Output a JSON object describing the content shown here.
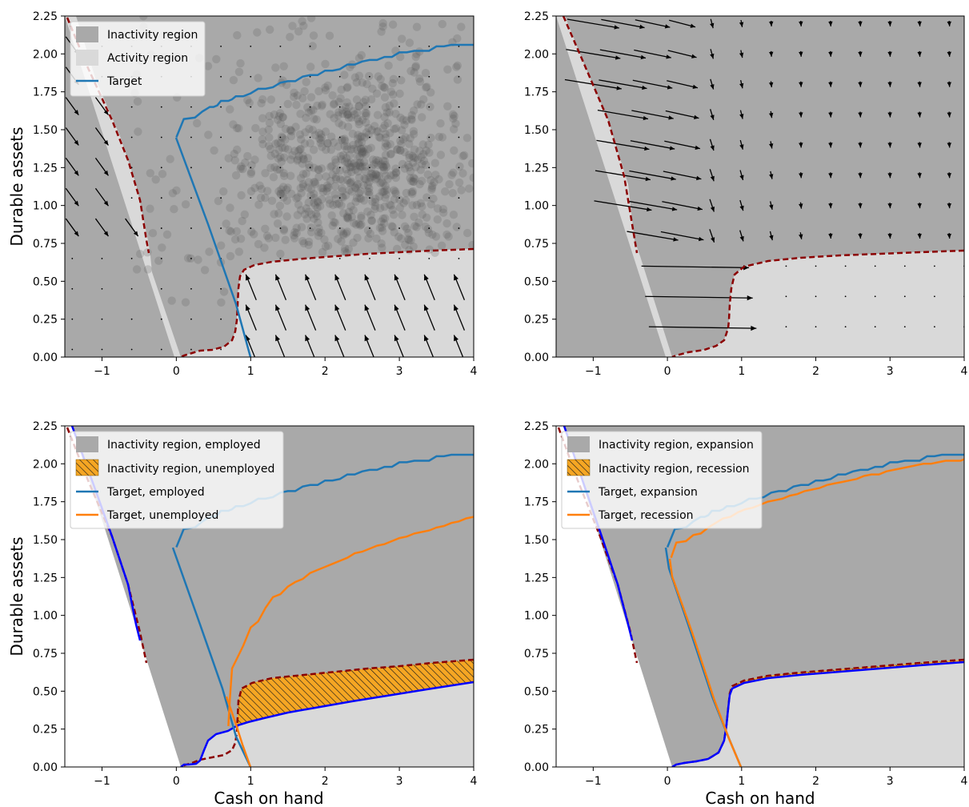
{
  "colors": {
    "inactivity": "#a9a9a9",
    "activity": "#d9d9d9",
    "blue": "#1f77b4",
    "orange": "#ff7f0e",
    "boundary": "#8b0000",
    "bright_blue": "#0000ff",
    "hatch_fill": "#f5a623"
  },
  "axes": {
    "xlim": [
      -1.5,
      4
    ],
    "ylim": [
      0,
      2.25
    ],
    "xticks": [
      -1,
      0,
      1,
      2,
      3,
      4
    ],
    "xtick_labels": [
      "−1",
      "0",
      "1",
      "2",
      "3",
      "4"
    ],
    "yticks": [
      0,
      0.25,
      0.5,
      0.75,
      1.0,
      1.25,
      1.5,
      1.75,
      2.0,
      2.25
    ],
    "ytick_labels": [
      "0.00",
      "0.25",
      "0.50",
      "0.75",
      "1.00",
      "1.25",
      "1.50",
      "1.75",
      "2.00",
      "2.25"
    ],
    "xlabel": "Cash on hand",
    "ylabel": "Durable assets"
  },
  "chart_data": [
    {
      "type": "area",
      "panel": "top-left",
      "ylabel": "Durable assets",
      "xlabel": "",
      "legend": [
        "Inactivity region",
        "Activity region",
        "Target"
      ],
      "legend_position": "top-left",
      "extras": "scatter cloud of simulated households and quiver field of drift",
      "series": [
        {
          "name": "Target",
          "x": [
            0.0,
            0.1,
            0.25,
            0.35,
            0.45,
            0.5,
            0.55,
            0.6,
            0.7,
            0.75,
            0.8,
            0.9,
            1.0,
            1.1,
            1.2,
            1.3,
            1.4,
            1.5,
            1.6,
            1.7,
            1.8,
            1.9,
            2.0,
            2.1,
            2.2,
            2.3,
            2.4,
            2.5,
            2.6,
            2.7,
            2.8,
            2.9,
            3.0,
            3.1,
            3.2,
            3.3,
            3.4,
            3.5,
            3.6,
            3.7,
            3.8,
            3.9,
            4.0
          ],
          "y": [
            1.45,
            1.57,
            1.58,
            1.62,
            1.65,
            1.65,
            1.66,
            1.69,
            1.69,
            1.7,
            1.72,
            1.72,
            1.74,
            1.77,
            1.77,
            1.78,
            1.81,
            1.82,
            1.82,
            1.85,
            1.86,
            1.86,
            1.89,
            1.89,
            1.9,
            1.93,
            1.93,
            1.95,
            1.96,
            1.96,
            1.98,
            1.98,
            2.01,
            2.01,
            2.02,
            2.02,
            2.02,
            2.05,
            2.05,
            2.06,
            2.06,
            2.06,
            2.06
          ]
        }
      ]
    },
    {
      "type": "area",
      "panel": "top-right",
      "ylabel": "",
      "xlabel": "",
      "legend": [],
      "extras": "quiver field of drift",
      "series": []
    },
    {
      "type": "area",
      "panel": "bottom-left",
      "ylabel": "Durable assets",
      "xlabel": "Cash on hand",
      "legend": [
        "Inactivity region, employed",
        "Inactivity region, unemployed",
        "Target, employed",
        "Target, unemployed"
      ],
      "legend_position": "top-left",
      "series": [
        {
          "name": "Target, employed",
          "x": [
            0.0,
            0.1,
            0.25,
            0.35,
            0.45,
            0.5,
            0.55,
            0.6,
            0.7,
            0.75,
            0.8,
            0.9,
            1.0,
            1.1,
            1.2,
            1.3,
            1.4,
            1.5,
            1.6,
            1.7,
            1.8,
            1.9,
            2.0,
            2.1,
            2.2,
            2.3,
            2.4,
            2.5,
            2.6,
            2.7,
            2.8,
            2.9,
            3.0,
            3.1,
            3.2,
            3.3,
            3.4,
            3.5,
            3.6,
            3.7,
            3.8,
            3.9,
            4.0
          ],
          "y": [
            1.45,
            1.57,
            1.58,
            1.62,
            1.65,
            1.65,
            1.66,
            1.69,
            1.69,
            1.7,
            1.72,
            1.72,
            1.74,
            1.77,
            1.77,
            1.78,
            1.81,
            1.82,
            1.82,
            1.85,
            1.86,
            1.86,
            1.89,
            1.89,
            1.9,
            1.93,
            1.93,
            1.95,
            1.96,
            1.96,
            1.98,
            1.98,
            2.01,
            2.01,
            2.02,
            2.02,
            2.02,
            2.05,
            2.05,
            2.06,
            2.06,
            2.06,
            2.06
          ]
        },
        {
          "name": "Target, unemployed",
          "x": [
            0.7,
            0.72,
            0.75,
            0.8,
            0.9,
            1.0,
            1.1,
            1.2,
            1.3,
            1.4,
            1.5,
            1.6,
            1.7,
            1.8,
            1.9,
            2.0,
            2.1,
            2.2,
            2.3,
            2.4,
            2.5,
            2.6,
            2.7,
            2.8,
            2.9,
            3.0,
            3.1,
            3.2,
            3.3,
            3.4,
            3.5,
            3.6,
            3.7,
            3.8,
            3.9,
            4.0
          ],
          "y": [
            0.27,
            0.45,
            0.65,
            0.7,
            0.8,
            0.92,
            0.96,
            1.05,
            1.12,
            1.14,
            1.19,
            1.22,
            1.24,
            1.28,
            1.3,
            1.32,
            1.34,
            1.36,
            1.38,
            1.41,
            1.42,
            1.44,
            1.46,
            1.47,
            1.49,
            1.51,
            1.52,
            1.54,
            1.55,
            1.56,
            1.58,
            1.59,
            1.61,
            1.62,
            1.64,
            1.65
          ]
        }
      ]
    },
    {
      "type": "area",
      "panel": "bottom-right",
      "ylabel": "",
      "xlabel": "Cash on hand",
      "legend": [
        "Inactivity region, expansion",
        "Inactivity region, recession",
        "Target, expansion",
        "Target, recession"
      ],
      "legend_position": "top-left",
      "series": [
        {
          "name": "Target, expansion",
          "x": [
            0.0,
            0.1,
            0.25,
            0.35,
            0.45,
            0.5,
            0.55,
            0.6,
            0.7,
            0.75,
            0.8,
            0.9,
            1.0,
            1.1,
            1.2,
            1.3,
            1.4,
            1.5,
            1.6,
            1.7,
            1.8,
            1.9,
            2.0,
            2.1,
            2.2,
            2.3,
            2.4,
            2.5,
            2.6,
            2.7,
            2.8,
            2.9,
            3.0,
            3.1,
            3.2,
            3.3,
            3.4,
            3.5,
            3.6,
            3.7,
            3.8,
            3.9,
            4.0
          ],
          "y": [
            1.45,
            1.57,
            1.58,
            1.62,
            1.65,
            1.65,
            1.66,
            1.69,
            1.69,
            1.7,
            1.72,
            1.72,
            1.74,
            1.77,
            1.77,
            1.78,
            1.81,
            1.82,
            1.82,
            1.85,
            1.86,
            1.86,
            1.89,
            1.89,
            1.9,
            1.93,
            1.93,
            1.95,
            1.96,
            1.96,
            1.98,
            1.98,
            2.01,
            2.01,
            2.02,
            2.02,
            2.02,
            2.05,
            2.05,
            2.06,
            2.06,
            2.06,
            2.06
          ]
        },
        {
          "name": "Target, recession",
          "x": [
            0.05,
            0.12,
            0.25,
            0.35,
            0.45,
            0.55,
            0.65,
            0.75,
            0.85,
            0.95,
            1.05,
            1.15,
            1.25,
            1.35,
            1.45,
            1.55,
            1.65,
            1.75,
            1.85,
            1.95,
            2.05,
            2.15,
            2.25,
            2.35,
            2.45,
            2.55,
            2.65,
            2.75,
            2.85,
            2.95,
            3.05,
            3.15,
            3.25,
            3.35,
            3.45,
            3.55,
            3.65,
            3.75,
            3.85,
            3.95,
            4.0
          ],
          "y": [
            1.38,
            1.48,
            1.49,
            1.53,
            1.54,
            1.58,
            1.61,
            1.64,
            1.65,
            1.68,
            1.7,
            1.71,
            1.73,
            1.75,
            1.76,
            1.77,
            1.79,
            1.8,
            1.82,
            1.83,
            1.84,
            1.86,
            1.87,
            1.88,
            1.89,
            1.9,
            1.92,
            1.93,
            1.93,
            1.95,
            1.96,
            1.97,
            1.98,
            1.99,
            2.0,
            2.0,
            2.01,
            2.02,
            2.02,
            2.02,
            2.03
          ]
        }
      ]
    }
  ]
}
